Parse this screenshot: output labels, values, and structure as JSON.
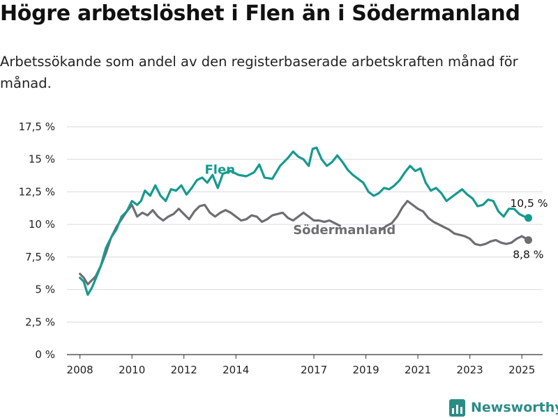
{
  "header": {
    "title": "Högre arbetslöshet i Flen än i Södermanland",
    "subtitle": "Arbetssökande som andel av den registerbaserade arbetskraften månad för månad."
  },
  "footer": {
    "brand": "Newsworthy"
  },
  "colors": {
    "flen": "#159a8f",
    "sodermanland": "#6e6e71",
    "grid": "#d9d9d9",
    "brand": "#2b8c86"
  },
  "chart_data": {
    "type": "line",
    "title": "Högre arbetslöshet i Flen än i Södermanland",
    "subtitle": "Arbetssökande som andel av den registerbaserade arbetskraften månad för månad.",
    "xlabel": "",
    "ylabel": "",
    "ylim": [
      0,
      17.5
    ],
    "yticks": [
      0,
      2.5,
      5,
      7.5,
      10,
      12.5,
      15,
      17.5
    ],
    "ytick_labels": [
      "0 %",
      "2,5 %",
      "5 %",
      "7,5 %",
      "10 %",
      "12,5 %",
      "15 %",
      "17,5 %"
    ],
    "xlim": [
      2007.5,
      2025.8
    ],
    "xticks": [
      2008,
      2010,
      2012,
      2014,
      2017,
      2019,
      2021,
      2023,
      2025
    ],
    "grid": true,
    "legend": "inline labels",
    "series": [
      {
        "name": "Flen",
        "label_position": [
          2012.8,
          13.9
        ],
        "end_label": "10,5 %",
        "end_value": 10.5,
        "points": [
          [
            2008.0,
            5.9
          ],
          [
            2008.15,
            5.6
          ],
          [
            2008.3,
            4.6
          ],
          [
            2008.45,
            5.1
          ],
          [
            2008.6,
            5.8
          ],
          [
            2008.8,
            6.8
          ],
          [
            2009.0,
            8.2
          ],
          [
            2009.2,
            9.0
          ],
          [
            2009.4,
            9.6
          ],
          [
            2009.6,
            10.6
          ],
          [
            2009.8,
            11.0
          ],
          [
            2010.0,
            11.8
          ],
          [
            2010.2,
            11.5
          ],
          [
            2010.35,
            11.8
          ],
          [
            2010.5,
            12.6
          ],
          [
            2010.7,
            12.2
          ],
          [
            2010.9,
            13.0
          ],
          [
            2011.1,
            12.2
          ],
          [
            2011.3,
            11.8
          ],
          [
            2011.5,
            12.7
          ],
          [
            2011.7,
            12.6
          ],
          [
            2011.9,
            13.0
          ],
          [
            2012.1,
            12.3
          ],
          [
            2012.3,
            12.8
          ],
          [
            2012.5,
            13.4
          ],
          [
            2012.7,
            13.6
          ],
          [
            2012.9,
            13.2
          ],
          [
            2013.1,
            13.8
          ],
          [
            2013.3,
            12.8
          ],
          [
            2013.5,
            13.9
          ],
          [
            2013.8,
            14.1
          ],
          [
            2014.1,
            13.8
          ],
          [
            2014.4,
            13.7
          ],
          [
            2014.7,
            14.0
          ],
          [
            2014.9,
            14.6
          ],
          [
            2015.1,
            13.6
          ],
          [
            2015.4,
            13.5
          ],
          [
            2015.7,
            14.5
          ],
          [
            2016.0,
            15.1
          ],
          [
            2016.2,
            15.6
          ],
          [
            2016.4,
            15.2
          ],
          [
            2016.6,
            15.0
          ],
          [
            2016.8,
            14.5
          ],
          [
            2016.95,
            15.8
          ],
          [
            2017.1,
            15.9
          ],
          [
            2017.3,
            15.0
          ],
          [
            2017.5,
            14.5
          ],
          [
            2017.7,
            14.8
          ],
          [
            2017.9,
            15.3
          ],
          [
            2018.1,
            14.8
          ],
          [
            2018.3,
            14.2
          ],
          [
            2018.5,
            13.8
          ],
          [
            2018.7,
            13.5
          ],
          [
            2018.9,
            13.2
          ],
          [
            2019.1,
            12.5
          ],
          [
            2019.3,
            12.2
          ],
          [
            2019.5,
            12.4
          ],
          [
            2019.7,
            12.8
          ],
          [
            2019.9,
            12.7
          ],
          [
            2020.1,
            13.0
          ],
          [
            2020.3,
            13.4
          ],
          [
            2020.5,
            14.0
          ],
          [
            2020.7,
            14.5
          ],
          [
            2020.9,
            14.1
          ],
          [
            2021.1,
            14.3
          ],
          [
            2021.3,
            13.2
          ],
          [
            2021.5,
            12.6
          ],
          [
            2021.7,
            12.8
          ],
          [
            2021.9,
            12.4
          ],
          [
            2022.1,
            11.8
          ],
          [
            2022.3,
            12.1
          ],
          [
            2022.5,
            12.4
          ],
          [
            2022.7,
            12.7
          ],
          [
            2022.9,
            12.3
          ],
          [
            2023.1,
            12.0
          ],
          [
            2023.3,
            11.4
          ],
          [
            2023.5,
            11.5
          ],
          [
            2023.7,
            11.9
          ],
          [
            2023.9,
            11.8
          ],
          [
            2024.1,
            11.0
          ],
          [
            2024.3,
            10.6
          ],
          [
            2024.5,
            11.2
          ],
          [
            2024.7,
            11.2
          ],
          [
            2024.9,
            10.8
          ],
          [
            2025.1,
            10.6
          ],
          [
            2025.25,
            10.5
          ]
        ]
      },
      {
        "name": "Södermanland",
        "label_position": [
          2016.2,
          9.25
        ],
        "end_label": "8,8 %",
        "end_value": 8.8,
        "segments": [
          [
            [
              2008.0,
              6.2
            ],
            [
              2008.15,
              5.9
            ],
            [
              2008.3,
              5.4
            ],
            [
              2008.45,
              5.7
            ],
            [
              2008.6,
              6.0
            ],
            [
              2008.8,
              6.8
            ],
            [
              2009.0,
              7.8
            ],
            [
              2009.2,
              9.0
            ],
            [
              2009.4,
              9.8
            ],
            [
              2009.6,
              10.4
            ],
            [
              2009.8,
              11.0
            ],
            [
              2010.0,
              11.5
            ],
            [
              2010.2,
              10.6
            ],
            [
              2010.4,
              10.9
            ],
            [
              2010.6,
              10.7
            ],
            [
              2010.8,
              11.1
            ],
            [
              2011.0,
              10.6
            ],
            [
              2011.2,
              10.3
            ],
            [
              2011.4,
              10.6
            ],
            [
              2011.6,
              10.8
            ],
            [
              2011.8,
              11.2
            ],
            [
              2012.0,
              10.8
            ],
            [
              2012.2,
              10.4
            ],
            [
              2012.4,
              11.0
            ],
            [
              2012.6,
              11.4
            ],
            [
              2012.8,
              11.5
            ],
            [
              2013.0,
              10.9
            ],
            [
              2013.2,
              10.6
            ],
            [
              2013.4,
              10.9
            ],
            [
              2013.6,
              11.1
            ],
            [
              2013.8,
              10.9
            ],
            [
              2014.0,
              10.6
            ],
            [
              2014.2,
              10.3
            ],
            [
              2014.4,
              10.4
            ],
            [
              2014.6,
              10.7
            ],
            [
              2014.8,
              10.6
            ],
            [
              2015.0,
              10.2
            ],
            [
              2015.2,
              10.4
            ],
            [
              2015.4,
              10.7
            ],
            [
              2015.6,
              10.8
            ],
            [
              2015.8,
              10.9
            ],
            [
              2016.0,
              10.5
            ],
            [
              2016.2,
              10.3
            ],
            [
              2016.4,
              10.6
            ],
            [
              2016.6,
              10.9
            ],
            [
              2016.8,
              10.6
            ],
            [
              2017.0,
              10.3
            ],
            [
              2017.2,
              10.3
            ],
            [
              2017.4,
              10.2
            ],
            [
              2017.6,
              10.3
            ],
            [
              2017.8,
              10.1
            ],
            [
              2018.0,
              9.9
            ]
          ],
          [
            [
              2019.6,
              9.6
            ],
            [
              2019.8,
              9.9
            ],
            [
              2020.0,
              10.1
            ],
            [
              2020.2,
              10.6
            ],
            [
              2020.4,
              11.3
            ],
            [
              2020.6,
              11.8
            ],
            [
              2020.8,
              11.5
            ],
            [
              2021.0,
              11.2
            ],
            [
              2021.2,
              11.0
            ],
            [
              2021.4,
              10.5
            ],
            [
              2021.6,
              10.2
            ],
            [
              2021.8,
              10.0
            ],
            [
              2022.0,
              9.8
            ],
            [
              2022.2,
              9.6
            ],
            [
              2022.4,
              9.3
            ],
            [
              2022.6,
              9.2
            ],
            [
              2022.8,
              9.1
            ],
            [
              2023.0,
              8.9
            ],
            [
              2023.2,
              8.5
            ],
            [
              2023.4,
              8.4
            ],
            [
              2023.6,
              8.5
            ],
            [
              2023.8,
              8.7
            ],
            [
              2024.0,
              8.8
            ],
            [
              2024.2,
              8.6
            ],
            [
              2024.4,
              8.5
            ],
            [
              2024.6,
              8.6
            ],
            [
              2024.8,
              8.9
            ],
            [
              2025.0,
              9.1
            ],
            [
              2025.25,
              8.8
            ]
          ]
        ]
      }
    ]
  }
}
